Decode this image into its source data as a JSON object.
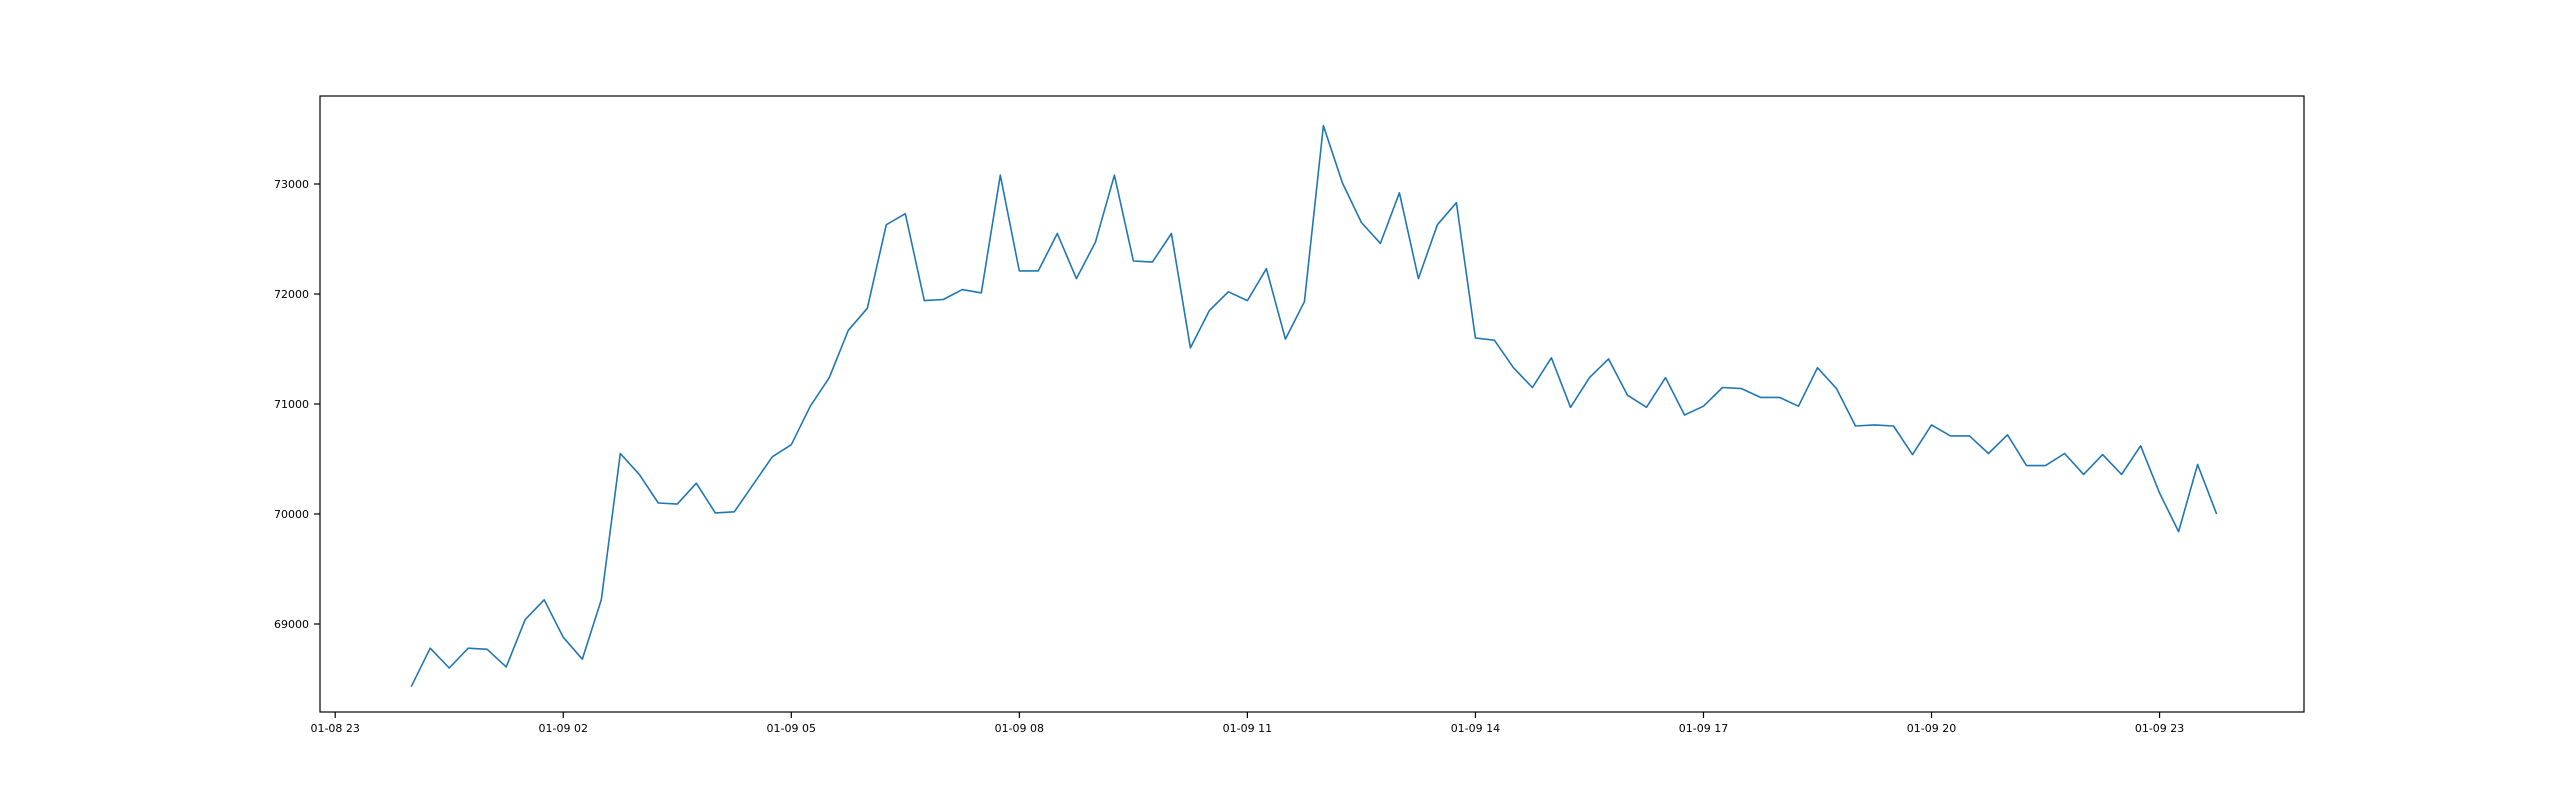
{
  "chart_data": {
    "type": "line",
    "title": "",
    "xlabel": "",
    "ylabel": "",
    "grid": false,
    "x_tick_labels": [
      "01-08 23",
      "01-09 02",
      "01-09 05",
      "01-09 08",
      "01-09 11",
      "01-09 14",
      "01-09 17",
      "01-09 20",
      "01-09 23"
    ],
    "y_tick_labels": [
      "69000",
      "70000",
      "71000",
      "72000",
      "73000"
    ],
    "ylim": [
      68200,
      73800
    ],
    "xlim": [
      "01-08 22:48",
      "01-10 00:54"
    ],
    "colors": {
      "line": "#1f77b4"
    },
    "x": [
      "01-09 00:00",
      "01-09 00:15",
      "01-09 00:30",
      "01-09 00:45",
      "01-09 01:00",
      "01-09 01:15",
      "01-09 01:30",
      "01-09 01:45",
      "01-09 02:00",
      "01-09 02:15",
      "01-09 02:30",
      "01-09 02:45",
      "01-09 03:00",
      "01-09 03:15",
      "01-09 03:30",
      "01-09 03:45",
      "01-09 04:00",
      "01-09 04:15",
      "01-09 04:30",
      "01-09 04:45",
      "01-09 05:00",
      "01-09 05:15",
      "01-09 05:30",
      "01-09 05:45",
      "01-09 06:00",
      "01-09 06:15",
      "01-09 06:30",
      "01-09 06:45",
      "01-09 07:00",
      "01-09 07:15",
      "01-09 07:30",
      "01-09 07:45",
      "01-09 08:00",
      "01-09 08:15",
      "01-09 08:30",
      "01-09 08:45",
      "01-09 09:00",
      "01-09 09:15",
      "01-09 09:30",
      "01-09 09:45",
      "01-09 10:00",
      "01-09 10:15",
      "01-09 10:30",
      "01-09 10:45",
      "01-09 11:00",
      "01-09 11:15",
      "01-09 11:30",
      "01-09 11:45",
      "01-09 12:00",
      "01-09 12:15",
      "01-09 12:30",
      "01-09 12:45",
      "01-09 13:00",
      "01-09 13:15",
      "01-09 13:30",
      "01-09 13:45",
      "01-09 14:00",
      "01-09 14:15",
      "01-09 14:30",
      "01-09 14:45",
      "01-09 15:00",
      "01-09 15:15",
      "01-09 15:30",
      "01-09 15:45",
      "01-09 16:00",
      "01-09 16:15",
      "01-09 16:30",
      "01-09 16:45",
      "01-09 17:00",
      "01-09 17:15",
      "01-09 17:30",
      "01-09 17:45",
      "01-09 18:00",
      "01-09 18:15",
      "01-09 18:30",
      "01-09 18:45",
      "01-09 19:00",
      "01-09 19:15",
      "01-09 19:30",
      "01-09 19:45",
      "01-09 20:00",
      "01-09 20:15",
      "01-09 20:30",
      "01-09 20:45",
      "01-09 21:00",
      "01-09 21:15",
      "01-09 21:30",
      "01-09 21:45",
      "01-09 22:00",
      "01-09 22:15",
      "01-09 22:30",
      "01-09 22:45",
      "01-09 23:00",
      "01-09 23:15",
      "01-09 23:30",
      "01-09 23:45"
    ],
    "series": [
      {
        "values": [
          68430,
          68780,
          68600,
          68780,
          68770,
          68610,
          69040,
          69220,
          68880,
          68680,
          69220,
          70550,
          70360,
          70100,
          70090,
          70280,
          70010,
          70020,
          70270,
          70520,
          70630,
          70980,
          71240,
          71670,
          71870,
          72630,
          72730,
          71940,
          71950,
          72040,
          72010,
          73080,
          72210,
          72210,
          72550,
          72140,
          72470,
          73080,
          72300,
          72290,
          72550,
          71510,
          71850,
          72020,
          71940,
          72230,
          71590,
          71930,
          73530,
          73010,
          72650,
          72460,
          72920,
          72140,
          72630,
          72830,
          71600,
          71580,
          71330,
          71150,
          71420,
          70970,
          71240,
          71410,
          71080,
          70970,
          71240,
          70900,
          70980,
          71150,
          71140,
          71060,
          71060,
          70980,
          71330,
          71140,
          70800,
          70810,
          70800,
          70540,
          70810,
          70710,
          70710,
          70550,
          70720,
          70440,
          70440,
          70550,
          70360,
          70540,
          70360,
          70620,
          70190,
          69840,
          70450,
          70000
        ]
      }
    ]
  }
}
